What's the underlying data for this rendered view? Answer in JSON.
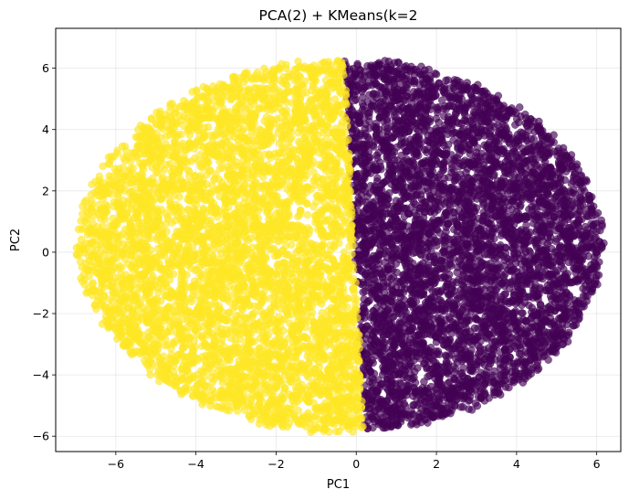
{
  "chart_data": {
    "type": "scatter",
    "title": "PCA(2) + KMeans(k=2",
    "xlabel": "PC1",
    "ylabel": "PC2",
    "xlim": [
      -7.5,
      6.6
    ],
    "ylim": [
      -6.5,
      7.3
    ],
    "xticks": [
      -6,
      -4,
      -2,
      0,
      2,
      4,
      6
    ],
    "yticks": [
      -6,
      -4,
      -2,
      0,
      2,
      4,
      6
    ],
    "grid": true,
    "legend": "none",
    "marker_alpha": 0.65,
    "series": [
      {
        "color": "#fde725",
        "shape": {
          "center": [
            -0.25,
            0.2
          ],
          "rx_left": 6.6,
          "ry": 6.0,
          "boundary_top_x": -0.3,
          "boundary_bottom_x": 0.2
        },
        "approx_points": 5000
      },
      {
        "color": "#440154",
        "shape": {
          "center": [
            -0.25,
            0.2
          ],
          "rx_right": 6.3,
          "ry": 6.0,
          "boundary_top_x": -0.3,
          "boundary_bottom_x": 0.2
        },
        "approx_points": 5000
      }
    ]
  }
}
